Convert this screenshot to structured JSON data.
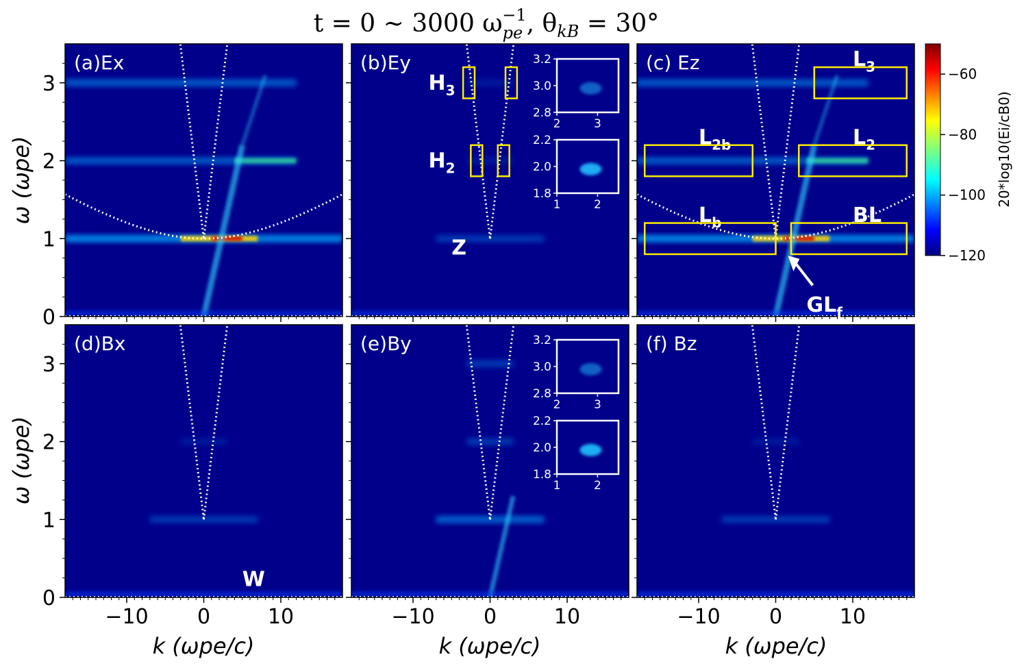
{
  "title": "t = 0 ~ 3000 ω",
  "title_sup": "−1",
  "title_sub": "pe",
  "title_theta": ", θ",
  "title_theta_sub": "kB",
  "title_end": " = 30°",
  "xlabel": "k (ωpe/c)",
  "ylabel": "ω (ωpe)",
  "colorbar": {
    "label": "20*log10(Ei/cB0)",
    "range": [
      -120,
      -50
    ],
    "ticks": [
      "−60",
      "−80",
      "−100",
      "−120"
    ],
    "tick_values": [
      -60,
      -80,
      -100,
      -120
    ]
  },
  "chart_data": {
    "type": "heatmap",
    "xlim": [
      -18,
      18
    ],
    "ylim": [
      0,
      3.5
    ],
    "xticks": [
      -10,
      0,
      10
    ],
    "xtick_labels": [
      "−10",
      "0",
      "10"
    ],
    "yticks": [
      0,
      1,
      2,
      3
    ],
    "ytick_labels": [
      "0",
      "1",
      "2",
      "3"
    ],
    "panels": [
      {
        "id": "a",
        "label": "(a)Ex",
        "level": "strong",
        "dispersion": true,
        "bands": [
          1,
          2,
          3
        ]
      },
      {
        "id": "b",
        "label": "(b)Ey",
        "level": "weak",
        "dispersion": false,
        "bands": [
          1,
          2,
          3
        ]
      },
      {
        "id": "c",
        "label": "(c) Ez",
        "level": "strong",
        "dispersion": true,
        "bands": [
          1,
          2,
          3
        ]
      },
      {
        "id": "d",
        "label": "(d)Bx",
        "level": "weak",
        "dispersion": false,
        "bands": [
          1,
          2
        ]
      },
      {
        "id": "e",
        "label": "(e)By",
        "level": "medium",
        "dispersion": false,
        "bands": [
          1,
          2,
          3
        ]
      },
      {
        "id": "f",
        "label": "(f) Bz",
        "level": "weak",
        "dispersion": false,
        "bands": [
          1,
          2
        ]
      }
    ],
    "annotations": {
      "b": [
        {
          "text": "H",
          "sub": "3"
        },
        {
          "text": "H",
          "sub": "2"
        },
        {
          "text": "Z",
          "sub": ""
        }
      ],
      "c": [
        {
          "text": "L",
          "sub": "3"
        },
        {
          "text": "L",
          "sub": "2b"
        },
        {
          "text": "L",
          "sub": "2"
        },
        {
          "text": "L",
          "sub": "b"
        },
        {
          "text": "BL",
          "sub": ""
        },
        {
          "text": "GL",
          "sub": "f"
        }
      ],
      "d": [
        {
          "text": "W",
          "sub": ""
        }
      ]
    },
    "insets": {
      "upper": {
        "xticks": [
          "2",
          "3"
        ],
        "yticks": [
          "3.2",
          "3.0",
          "2.8"
        ]
      },
      "lower": {
        "xticks": [
          "1",
          "2"
        ],
        "yticks": [
          "2.2",
          "2.0",
          "1.8"
        ]
      }
    }
  }
}
